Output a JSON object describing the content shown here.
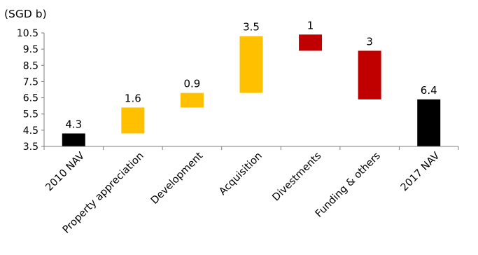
{
  "chart_data": {
    "type": "waterfall",
    "unit_label": "(SGD b)",
    "ylim": [
      3.5,
      10.5
    ],
    "yticks": [
      "10.5",
      "9.5",
      "8.5",
      "7.5",
      "6.5",
      "5.5",
      "4.5",
      "3.5"
    ],
    "grid": false,
    "legend": "none",
    "colors": {
      "total": "#000000",
      "increase": "#ffc000",
      "decrease": "#c00000",
      "axis": "#7f7f7f"
    },
    "bars": [
      {
        "category": "2010 NAV",
        "label": "4.3",
        "base": 3.5,
        "top": 4.3,
        "kind": "total"
      },
      {
        "category": "Property appreciation",
        "label": "1.6",
        "base": 4.3,
        "top": 5.9,
        "kind": "increase"
      },
      {
        "category": "Development",
        "label": "0.9",
        "base": 5.9,
        "top": 6.8,
        "kind": "increase"
      },
      {
        "category": "Acquisition",
        "label": "3.5",
        "base": 6.8,
        "top": 10.3,
        "kind": "increase"
      },
      {
        "category": "Divestments",
        "label": "1",
        "base": 9.4,
        "top": 10.4,
        "kind": "decrease"
      },
      {
        "category": "Funding & others",
        "label": "3",
        "base": 6.4,
        "top": 9.4,
        "kind": "decrease"
      },
      {
        "category": "2017 NAV",
        "label": "6.4",
        "base": 3.5,
        "top": 6.4,
        "kind": "total"
      }
    ]
  }
}
